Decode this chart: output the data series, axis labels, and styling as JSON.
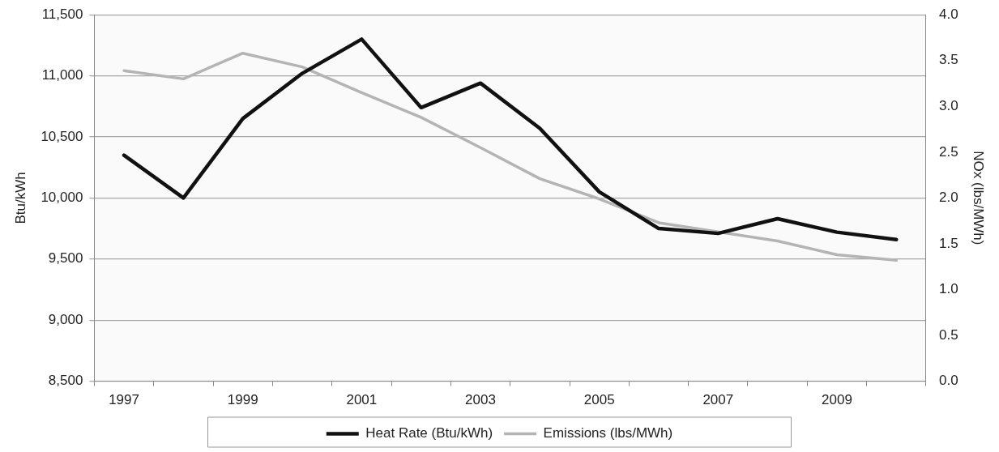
{
  "chart_data": {
    "type": "line",
    "ylabel": "Btu/kWh",
    "y2label": "NOx (lbs/MWh)",
    "categories": [
      "1997",
      null,
      "1999",
      null,
      "2001",
      null,
      "2003",
      null,
      "2005",
      null,
      "2007",
      null,
      "2009",
      null
    ],
    "series": [
      {
        "name": "Heat Rate (Btu/kWh)",
        "color": "#111111",
        "values": [
          10350,
          10000,
          10650,
          11020,
          11300,
          10740,
          10940,
          10570,
          10050,
          9750,
          9710,
          9830,
          9720,
          9660
        ]
      },
      {
        "name": "Emissions (lbs/MWh)",
        "color": "#b4b4b4",
        "axis": "y2",
        "values": [
          3.39,
          3.3,
          3.58,
          3.43,
          3.15,
          2.88,
          2.55,
          2.21,
          1.99,
          1.73,
          1.63,
          1.53,
          1.38,
          1.32
        ]
      }
    ],
    "ylim": [
      8500,
      11500
    ],
    "yticks": [
      {
        "value": 8500,
        "label": "8,500"
      },
      {
        "value": 9000,
        "label": "9,000"
      },
      {
        "value": 9500,
        "label": "9,500"
      },
      {
        "value": 10000,
        "label": "10,000"
      },
      {
        "value": 10500,
        "label": "10,500"
      },
      {
        "value": 11000,
        "label": "11,000"
      },
      {
        "value": 11500,
        "label": "11,500"
      }
    ],
    "y2lim": [
      0,
      4
    ],
    "y2ticks": [
      {
        "value": 0,
        "label": "0.0"
      },
      {
        "value": 0.5,
        "label": "0.5"
      },
      {
        "value": 1,
        "label": "1.0"
      },
      {
        "value": 1.5,
        "label": "1.5"
      },
      {
        "value": 2,
        "label": "2.0"
      },
      {
        "value": 2.5,
        "label": "2.5"
      },
      {
        "value": 3,
        "label": "3.0"
      },
      {
        "value": 3.5,
        "label": "3.5"
      },
      {
        "value": 4,
        "label": "4.0"
      }
    ],
    "grid": "y",
    "legend": "bottom",
    "marker": "none",
    "line_style": "solid"
  }
}
